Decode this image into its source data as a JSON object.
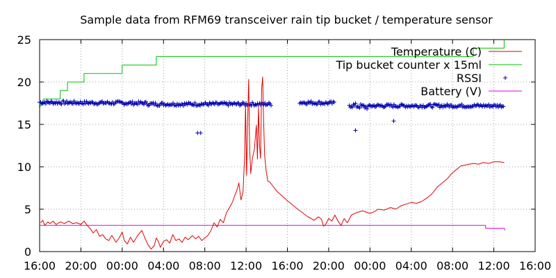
{
  "chart_data": {
    "type": "line",
    "title": "Sample data from RFM69 transceiver rain tip bucket / temperature sensor",
    "xlabel": "",
    "ylabel": "",
    "x_unit": "hours from first 16:00 tick",
    "xlim": [
      0,
      48
    ],
    "ylim": [
      0,
      25
    ],
    "grid": true,
    "legend_position": "top-right",
    "x_tick_values": [
      0,
      4,
      8,
      12,
      16,
      20,
      24,
      28,
      32,
      36,
      40,
      44,
      48
    ],
    "x_tick_labels": [
      "16:00",
      "20:00",
      "00:00",
      "04:00",
      "08:00",
      "12:00",
      "16:00",
      "20:00",
      "00:00",
      "04:00",
      "08:00",
      "12:00",
      "16:00"
    ],
    "y_tick_values": [
      0,
      5,
      10,
      15,
      20,
      25
    ],
    "y_tick_labels": [
      "0",
      "5",
      "10",
      "15",
      "20",
      "25"
    ],
    "series": [
      {
        "name": "Temperature (C)",
        "style": "line",
        "color": "#e00000",
        "points": [
          [
            0.1,
            3.4
          ],
          [
            0.3,
            3.7
          ],
          [
            0.5,
            3.1
          ],
          [
            0.8,
            3.5
          ],
          [
            1.0,
            3.3
          ],
          [
            1.3,
            3.6
          ],
          [
            1.6,
            3.2
          ],
          [
            2.0,
            3.5
          ],
          [
            2.4,
            3.3
          ],
          [
            2.8,
            3.6
          ],
          [
            3.2,
            3.3
          ],
          [
            3.6,
            3.4
          ],
          [
            4.0,
            3.2
          ],
          [
            4.3,
            3.6
          ],
          [
            4.6,
            3.1
          ],
          [
            4.9,
            2.7
          ],
          [
            5.2,
            2.2
          ],
          [
            5.5,
            2.6
          ],
          [
            5.8,
            1.8
          ],
          [
            6.1,
            2.0
          ],
          [
            6.4,
            1.5
          ],
          [
            6.7,
            1.3
          ],
          [
            7.0,
            1.9
          ],
          [
            7.4,
            1.1
          ],
          [
            7.7,
            1.6
          ],
          [
            8.0,
            2.3
          ],
          [
            8.2,
            1.3
          ],
          [
            8.5,
            0.9
          ],
          [
            8.8,
            1.7
          ],
          [
            9.1,
            1.1
          ],
          [
            9.5,
            1.9
          ],
          [
            9.9,
            2.5
          ],
          [
            10.2,
            1.6
          ],
          [
            10.5,
            0.8
          ],
          [
            10.8,
            0.3
          ],
          [
            11.1,
            0.7
          ],
          [
            11.3,
            1.6
          ],
          [
            11.5,
            1.2
          ],
          [
            11.7,
            0.5
          ],
          [
            12.0,
            1.2
          ],
          [
            12.3,
            1.4
          ],
          [
            12.6,
            1.0
          ],
          [
            12.9,
            2.0
          ],
          [
            13.2,
            1.3
          ],
          [
            13.5,
            1.5
          ],
          [
            13.8,
            1.1
          ],
          [
            14.1,
            1.7
          ],
          [
            14.4,
            1.4
          ],
          [
            14.8,
            1.9
          ],
          [
            15.1,
            1.5
          ],
          [
            15.4,
            1.8
          ],
          [
            15.7,
            1.3
          ],
          [
            16.0,
            1.6
          ],
          [
            16.3,
            1.9
          ],
          [
            16.6,
            2.5
          ],
          [
            16.9,
            3.4
          ],
          [
            17.2,
            2.9
          ],
          [
            17.5,
            3.8
          ],
          [
            17.8,
            3.4
          ],
          [
            18.1,
            4.6
          ],
          [
            18.4,
            5.2
          ],
          [
            18.7,
            5.9
          ],
          [
            18.9,
            6.6
          ],
          [
            19.1,
            7.2
          ],
          [
            19.3,
            8.1
          ],
          [
            19.5,
            6.1
          ],
          [
            19.7,
            7.0
          ],
          [
            19.85,
            11.0
          ],
          [
            19.95,
            17.4
          ],
          [
            20.05,
            9.0
          ],
          [
            20.15,
            15.2
          ],
          [
            20.25,
            20.3
          ],
          [
            20.35,
            12.0
          ],
          [
            20.45,
            9.2
          ],
          [
            20.6,
            10.9
          ],
          [
            20.8,
            12.1
          ],
          [
            21.0,
            14.9
          ],
          [
            21.1,
            10.9
          ],
          [
            21.2,
            17.0
          ],
          [
            21.3,
            12.5
          ],
          [
            21.4,
            11.0
          ],
          [
            21.5,
            19.1
          ],
          [
            21.6,
            20.6
          ],
          [
            21.7,
            15.4
          ],
          [
            21.8,
            11.3
          ],
          [
            21.95,
            9.5
          ],
          [
            22.1,
            8.3
          ],
          [
            22.3,
            8.2
          ],
          [
            23.0,
            7.1
          ],
          [
            24.0,
            6.0
          ],
          [
            25.0,
            5.0
          ],
          [
            26.0,
            4.1
          ],
          [
            26.6,
            3.7
          ],
          [
            27.0,
            4.1
          ],
          [
            27.3,
            3.8
          ],
          [
            27.5,
            3.0
          ],
          [
            27.7,
            3.2
          ],
          [
            28.0,
            3.9
          ],
          [
            28.3,
            3.6
          ],
          [
            28.6,
            4.3
          ],
          [
            28.9,
            3.6
          ],
          [
            29.2,
            3.1
          ],
          [
            29.5,
            3.9
          ],
          [
            29.8,
            3.4
          ],
          [
            30.2,
            4.3
          ],
          [
            30.7,
            4.6
          ],
          [
            31.3,
            4.8
          ],
          [
            32.0,
            4.5
          ],
          [
            32.4,
            4.7
          ],
          [
            32.8,
            5.0
          ],
          [
            33.4,
            4.9
          ],
          [
            34.0,
            5.2
          ],
          [
            34.5,
            5.0
          ],
          [
            35.0,
            5.4
          ],
          [
            35.5,
            5.6
          ],
          [
            36.0,
            5.8
          ],
          [
            36.5,
            5.7
          ],
          [
            37.0,
            5.9
          ],
          [
            37.5,
            6.3
          ],
          [
            38.0,
            6.8
          ],
          [
            38.5,
            7.6
          ],
          [
            39.0,
            8.1
          ],
          [
            39.5,
            8.6
          ],
          [
            40.0,
            9.3
          ],
          [
            40.4,
            9.7
          ],
          [
            40.8,
            10.1
          ],
          [
            41.2,
            10.2
          ],
          [
            41.6,
            10.3
          ],
          [
            42.0,
            10.4
          ],
          [
            42.5,
            10.3
          ],
          [
            43.0,
            10.5
          ],
          [
            43.5,
            10.4
          ],
          [
            44.0,
            10.6
          ],
          [
            44.5,
            10.6
          ],
          [
            45.0,
            10.5
          ]
        ]
      },
      {
        "name": "Tip bucket counter x 15ml",
        "style": "step",
        "color": "#00c000",
        "points": [
          [
            0.0,
            17.0
          ],
          [
            0.4,
            18.0
          ],
          [
            2.0,
            18.0
          ],
          [
            2.0,
            19.0
          ],
          [
            2.7,
            19.0
          ],
          [
            2.7,
            20.0
          ],
          [
            4.3,
            20.0
          ],
          [
            4.3,
            21.0
          ],
          [
            8.0,
            21.0
          ],
          [
            8.0,
            22.0
          ],
          [
            11.3,
            22.0
          ],
          [
            11.3,
            23.0
          ],
          [
            20.0,
            23.0
          ],
          [
            20.0,
            23.0
          ],
          [
            42.0,
            23.0
          ],
          [
            42.0,
            24.0
          ],
          [
            45.0,
            24.0
          ],
          [
            45.0,
            25.0
          ],
          [
            45.2,
            25.0
          ]
        ]
      },
      {
        "name": "RSSI",
        "style": "points",
        "color": "#0000b0",
        "segments": [
          {
            "x_start": 0.0,
            "x_end": 10.5,
            "y_start": 17.6,
            "y_end": 17.5,
            "jitter": 0.2
          },
          {
            "x_start": 10.5,
            "x_end": 22.5,
            "y_start": 17.4,
            "y_end": 17.4,
            "jitter": 0.2
          },
          {
            "x_start": 25.2,
            "x_end": 28.6,
            "y_start": 17.6,
            "y_end": 17.5,
            "jitter": 0.2
          },
          {
            "x_start": 30.0,
            "x_end": 32.0,
            "y_start": 17.3,
            "y_end": 17.0,
            "jitter": 0.3
          },
          {
            "x_start": 32.0,
            "x_end": 45.0,
            "y_start": 17.2,
            "y_end": 17.2,
            "jitter": 0.2
          }
        ],
        "outliers": [
          [
            15.3,
            14.0
          ],
          [
            15.6,
            14.0
          ],
          [
            30.6,
            14.3
          ],
          [
            34.3,
            15.4
          ]
        ]
      },
      {
        "name": "Battery (V)",
        "style": "line",
        "color": "#e000e0",
        "points": [
          [
            0.0,
            3.1
          ],
          [
            43.2,
            3.1
          ],
          [
            43.2,
            2.75
          ],
          [
            45.0,
            2.75
          ],
          [
            45.1,
            2.5
          ]
        ]
      }
    ]
  }
}
